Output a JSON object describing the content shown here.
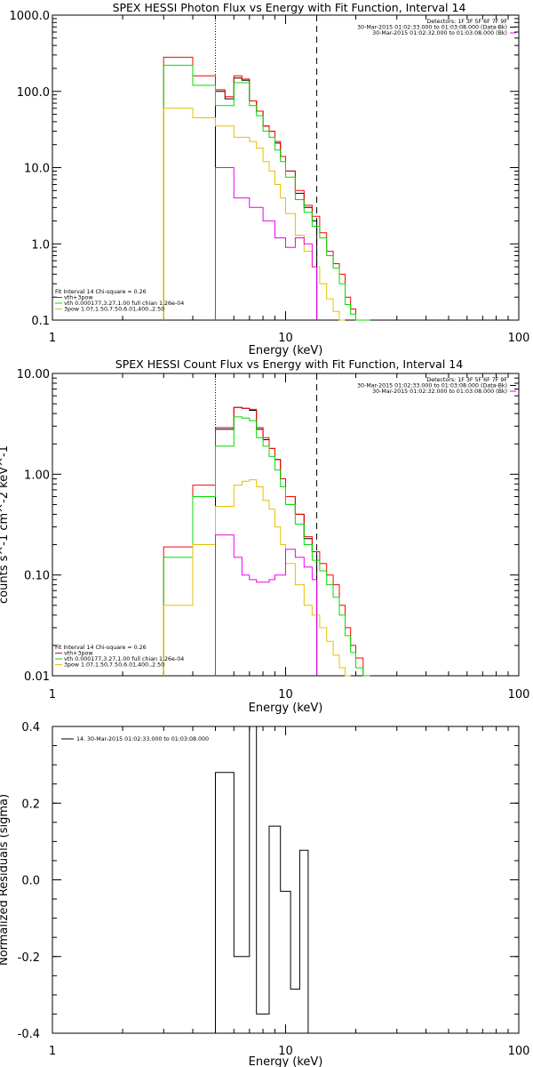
{
  "chart_data": [
    {
      "type": "line",
      "title": "SPEX HESSI Photon Flux vs Energy with Fit Function, Interval 14",
      "xlabel": "Energy (keV)",
      "ylabel": "",
      "xscale": "log",
      "yscale": "log",
      "xlim": [
        1,
        100
      ],
      "ylim": [
        0.1,
        1000
      ],
      "yticks": [
        "1000.0",
        "100.0",
        "10.0",
        "1.0",
        "0.1"
      ],
      "xticks": [
        "1",
        "10",
        "100"
      ],
      "vlines": [
        {
          "x": 5,
          "style": "dotted"
        },
        {
          "x": 13.6,
          "style": "dashed"
        }
      ],
      "info_right": [
        "Detectors: 1F 3F 5F 6F 7F 9F",
        "30-Mar-2015 01:02:33.000 to 01:03:08.000 (Data-Bk)",
        "30-Mar-2015 01:02:32.000 to 01:03:08.000 (Bk)"
      ],
      "info_left": [
        "Fit Interval 14    Chi-square = 0.26",
        "vth+3pow",
        "vth 0.000177,3.27,1.00   full chian 1.26e-04",
        "3pow 1.07,1.50,7.50,6.01,400.,2.50"
      ],
      "edges": [
        3.0,
        3.5,
        4.0,
        4.5,
        5.0,
        5.5,
        6.0,
        6.5,
        7.0,
        7.5,
        8.0,
        8.5,
        9.0,
        9.5,
        10.0,
        11.0,
        12.0,
        13.0,
        14.0,
        15.0,
        16.0,
        17.0,
        18.0,
        19.0,
        20.0,
        21.5,
        23.0
      ],
      "series": [
        {
          "name": "black",
          "color": "#000000",
          "start": 5.0,
          "end": 13.6,
          "values": [
            null,
            null,
            null,
            null,
            100,
            80,
            150,
            140,
            75,
            55,
            35,
            30,
            21,
            14,
            9.0,
            4.6,
            3.0,
            2.0
          ]
        },
        {
          "name": "vth+3pow",
          "color": "#ff0000",
          "values": [
            280,
            280,
            160,
            160,
            105,
            85,
            160,
            145,
            75,
            55,
            35,
            30,
            22,
            14,
            9.0,
            5.0,
            3.2,
            2.3,
            1.4,
            0.8,
            0.55,
            0.4,
            0.2,
            0.14,
            0.1,
            0.1
          ]
        },
        {
          "name": "vth",
          "color": "#00dd00",
          "values": [
            220,
            220,
            120,
            120,
            65,
            65,
            130,
            130,
            65,
            48,
            30,
            25,
            17,
            12,
            7.5,
            3.8,
            2.6,
            1.7,
            1.2,
            0.7,
            0.48,
            0.3,
            0.16,
            0.12,
            0.1,
            0.1
          ]
        },
        {
          "name": "3pow",
          "color": "#e6c000",
          "values": [
            60,
            60,
            45,
            45,
            35,
            35,
            25,
            25,
            22,
            18,
            12,
            9,
            6,
            4,
            2.5,
            1.3,
            0.8,
            0.5,
            0.3,
            0.19,
            0.13,
            0.1,
            null,
            null,
            null,
            null
          ]
        },
        {
          "name": "magenta",
          "color": "#ee00ee",
          "start": 5.0,
          "end": 13.6,
          "values": [
            null,
            null,
            null,
            null,
            10,
            10,
            4.0,
            4.0,
            3.0,
            3.0,
            2.0,
            2.0,
            1.2,
            1.2,
            0.9,
            1.2,
            1.0,
            0.5
          ]
        }
      ]
    },
    {
      "type": "line",
      "title": "SPEX HESSI Count Flux vs Energy with Fit Function, Interval 14",
      "xlabel": "Energy (keV)",
      "ylabel": "counts s^-1 cm^-2 keV^-1",
      "xscale": "log",
      "yscale": "log",
      "xlim": [
        1,
        100
      ],
      "ylim": [
        0.01,
        10
      ],
      "yticks": [
        "10.00",
        "1.00",
        "0.10",
        "0.01"
      ],
      "xticks": [
        "1",
        "10",
        "100"
      ],
      "vlines": [
        {
          "x": 5,
          "style": "dotted"
        },
        {
          "x": 13.6,
          "style": "dashed"
        }
      ],
      "info_right": [
        "Detectors: 1F 3F 5F 6F 7F 9F",
        "30-Mar-2015 01:02:33.000 to 01:03:08.000 (Data-Bk)",
        "30-Mar-2015 01:02:32.000 to 01:03:08.000 (Bk)"
      ],
      "info_left": [
        "Fit Interval 14    Chi-square = 0.26",
        "vth+3pow",
        "vth 0.000177,3.27,1.00   full chian 1.26e-04",
        "3pow 1.07,1.50,7.50,6.01,400.,2.50"
      ],
      "edges": [
        3.0,
        3.5,
        4.0,
        4.5,
        5.0,
        5.5,
        6.0,
        6.5,
        7.0,
        7.5,
        8.0,
        8.5,
        9.0,
        9.5,
        10.0,
        11.0,
        12.0,
        13.0,
        14.0,
        15.0,
        16.0,
        17.0,
        18.0,
        19.0,
        20.0,
        21.5,
        23.0
      ],
      "series": [
        {
          "name": "black",
          "color": "#000000",
          "start": 5.0,
          "end": 13.6,
          "values": [
            null,
            null,
            null,
            null,
            2.8,
            2.8,
            4.6,
            4.5,
            4.3,
            2.8,
            2.2,
            1.8,
            1.4,
            0.9,
            0.6,
            0.4,
            0.23,
            0.17
          ]
        },
        {
          "name": "vth+3pow",
          "color": "#ff0000",
          "values": [
            0.19,
            0.19,
            0.78,
            0.78,
            2.9,
            2.9,
            4.6,
            4.5,
            4.4,
            2.9,
            2.3,
            1.8,
            1.4,
            0.9,
            0.6,
            0.4,
            0.24,
            0.17,
            0.13,
            0.1,
            0.08,
            0.05,
            0.03,
            0.02,
            0.015,
            0.01
          ]
        },
        {
          "name": "vth",
          "color": "#00dd00",
          "values": [
            0.15,
            0.15,
            0.6,
            0.6,
            1.9,
            1.9,
            3.7,
            3.6,
            3.4,
            2.3,
            1.9,
            1.5,
            1.1,
            0.75,
            0.5,
            0.32,
            0.2,
            0.14,
            0.11,
            0.08,
            0.06,
            0.04,
            0.025,
            0.017,
            0.012,
            0.01
          ]
        },
        {
          "name": "3pow",
          "color": "#e6c000",
          "values": [
            0.05,
            0.05,
            0.2,
            0.2,
            0.48,
            0.48,
            0.78,
            0.85,
            0.88,
            0.75,
            0.55,
            0.45,
            0.3,
            0.2,
            0.13,
            0.08,
            0.05,
            0.04,
            0.03,
            0.022,
            0.016,
            0.012,
            0.01,
            null,
            null,
            null
          ]
        },
        {
          "name": "magenta",
          "color": "#ee00ee",
          "start": 5.0,
          "end": 13.6,
          "values": [
            null,
            null,
            null,
            null,
            0.25,
            0.25,
            0.15,
            0.1,
            0.09,
            0.085,
            0.085,
            0.09,
            0.1,
            0.1,
            0.18,
            0.15,
            0.12,
            0.09
          ]
        }
      ]
    },
    {
      "type": "line",
      "title": "",
      "xlabel": "Energy (keV)",
      "ylabel": "Normalized Residuals (sigma)",
      "xscale": "log",
      "yscale": "linear",
      "xlim": [
        1,
        100
      ],
      "ylim": [
        -0.4,
        0.4
      ],
      "yticks": [
        "0.4",
        "0.2",
        "0.0",
        "-0.2",
        "-0.4"
      ],
      "xticks": [
        "1",
        "10",
        "100"
      ],
      "legend": "14. 30-Mar-2015 01:02:33.000 to 01:03:08.000",
      "edges": [
        5.0,
        6.0,
        7.0,
        7.5,
        8.5,
        9.5,
        10.5,
        11.5,
        12.5,
        13.6
      ],
      "series": [
        {
          "name": "residuals",
          "color": "#000000",
          "values": [
            0.28,
            -0.2,
            0.4,
            -0.35,
            0.14,
            -0.03,
            -0.285,
            0.077,
            -0.4
          ]
        }
      ]
    }
  ]
}
